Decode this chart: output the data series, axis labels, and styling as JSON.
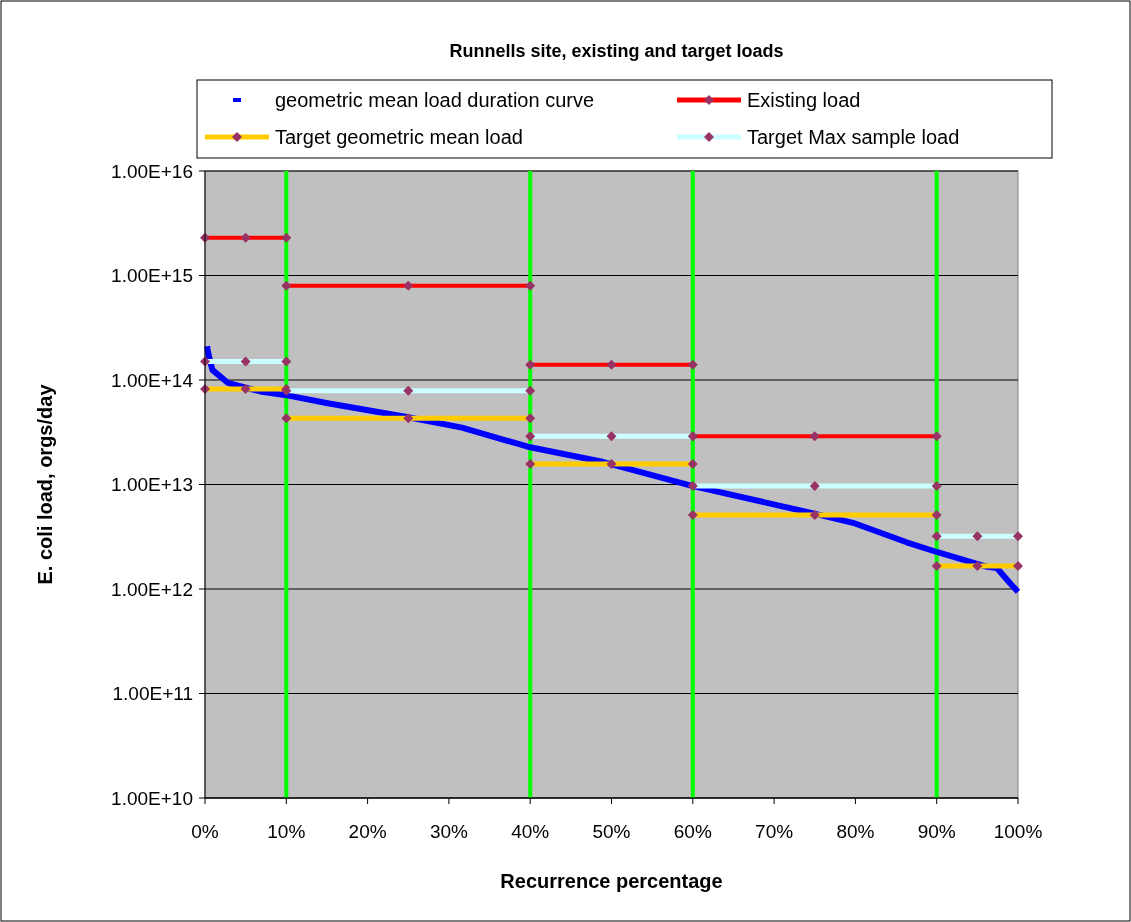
{
  "chart_data": {
    "type": "line",
    "title": "Runnells site, existing and target loads",
    "xlabel": "Recurrence percentage",
    "ylabel": "E. coli load, orgs/day",
    "log": "y",
    "grid": "y",
    "legend": "top",
    "xlim": [
      0,
      100
    ],
    "ylim": [
      10000000000.0,
      1e+16
    ],
    "xticks": [
      {
        "value": 0,
        "label": "0%"
      },
      {
        "value": 10,
        "label": "10%"
      },
      {
        "value": 20,
        "label": "20%"
      },
      {
        "value": 30,
        "label": "30%"
      },
      {
        "value": 40,
        "label": "40%"
      },
      {
        "value": 50,
        "label": "50%"
      },
      {
        "value": 60,
        "label": "60%"
      },
      {
        "value": 70,
        "label": "70%"
      },
      {
        "value": 80,
        "label": "80%"
      },
      {
        "value": 90,
        "label": "90%"
      },
      {
        "value": 100,
        "label": "100%"
      }
    ],
    "yticks": [
      {
        "value": 10000000000.0,
        "label": "1.00E+10"
      },
      {
        "value": 100000000000.0,
        "label": "1.00E+11"
      },
      {
        "value": 1000000000000.0,
        "label": "1.00E+12"
      },
      {
        "value": 10000000000000.0,
        "label": "1.00E+13"
      },
      {
        "value": 100000000000000.0,
        "label": "1.00E+14"
      },
      {
        "value": 1000000000000000.0,
        "label": "1.00E+15"
      },
      {
        "value": 1e+16,
        "label": "1.00E+16"
      }
    ],
    "ref_lines": [
      {
        "axis": "x",
        "value": 10,
        "color": "#00ff00"
      },
      {
        "axis": "x",
        "value": 40,
        "color": "#00ff00"
      },
      {
        "axis": "x",
        "value": 60,
        "color": "#00ff00"
      },
      {
        "axis": "x",
        "value": 90,
        "color": "#00ff00"
      }
    ],
    "series": [
      {
        "name": "geometric mean load duration curve",
        "color": "#0000ff",
        "marker": "none",
        "x": [
          0.25,
          0.4,
          0.9,
          2.8,
          7,
          9.8,
          15.1,
          25,
          31.6,
          39.7,
          49,
          59.9,
          74.8,
          79.7,
          86.3,
          90,
          96.2,
          97.4,
          99,
          100
        ],
        "values": [
          210000000000000.0,
          180000000000000.0,
          125000000000000.0,
          94000000000000.0,
          77000000000000.0,
          72000000000000.0,
          60000000000000.0,
          44000000000000.0,
          35000000000000.0,
          23000000000000.0,
          16400000000000.0,
          9700000000000.0,
          5300000000000.0,
          4300000000000.0,
          2800000000000.0,
          2260000000000.0,
          1630000000000.0,
          1590000000000.0,
          1140000000000.0,
          940000000000.0
        ]
      },
      {
        "name": "Existing load",
        "color": "#ff0000",
        "marker": "diamond",
        "x": [
          0,
          5,
          10,
          10,
          25,
          40,
          40,
          50,
          60,
          60,
          75,
          90
        ],
        "values": [
          2300000000000000.0,
          2300000000000000.0,
          2300000000000000.0,
          800000000000000.0,
          800000000000000.0,
          800000000000000.0,
          140000000000000.0,
          140000000000000.0,
          140000000000000.0,
          29000000000000.0,
          29000000000000.0,
          29000000000000.0
        ]
      },
      {
        "name": "Target geometric mean load",
        "color": "#ffcc00",
        "marker": "diamond",
        "x": [
          0,
          5,
          10,
          10,
          25,
          40,
          40,
          50,
          60,
          60,
          75,
          90,
          90,
          95,
          100
        ],
        "values": [
          82000000000000.0,
          82000000000000.0,
          82000000000000.0,
          43000000000000.0,
          43000000000000.0,
          43000000000000.0,
          15700000000000.0,
          15700000000000.0,
          15700000000000.0,
          5100000000000.0,
          5100000000000.0,
          5100000000000.0,
          1660000000000.0,
          1660000000000.0,
          1660000000000.0
        ]
      },
      {
        "name": "Target Max sample load",
        "color": "#ccffff",
        "marker": "diamond",
        "x": [
          0,
          5,
          10,
          10,
          25,
          40,
          40,
          50,
          60,
          60,
          75,
          90,
          90,
          95,
          100
        ],
        "values": [
          150000000000000.0,
          150000000000000.0,
          150000000000000.0,
          79000000000000.0,
          79000000000000.0,
          79000000000000.0,
          29000000000000.0,
          29000000000000.0,
          29000000000000.0,
          9700000000000.0,
          9700000000000.0,
          9700000000000.0,
          3200000000000.0,
          3200000000000.0,
          3200000000000.0
        ]
      }
    ]
  }
}
